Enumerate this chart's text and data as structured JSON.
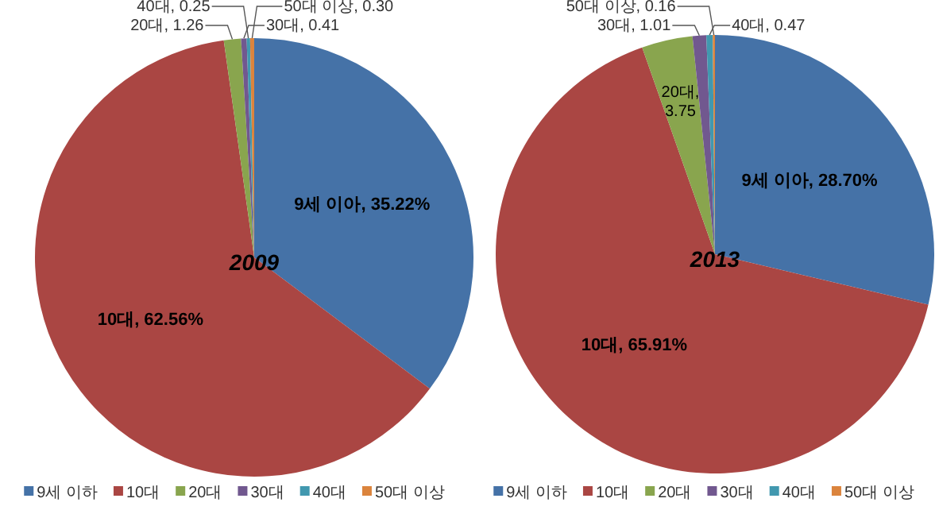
{
  "chart_data": [
    {
      "type": "pie",
      "title": "2009",
      "categories": [
        "9세 이하",
        "10대",
        "20대",
        "30대",
        "40대",
        "50대 이상"
      ],
      "values": [
        35.22,
        62.56,
        1.26,
        0.41,
        0.25,
        0.3
      ],
      "value_labels": [
        "9세 이아, 35.22%",
        "10대, 62.56%",
        "20대, 1.26",
        "30대, 0.41",
        "40대, 0.25",
        "50대 이상, 0.30"
      ],
      "colors": [
        "#4572a7",
        "#aa4643",
        "#89a54e",
        "#71588f",
        "#4198af",
        "#db843d"
      ],
      "legend": "bottom"
    },
    {
      "type": "pie",
      "title": "2013",
      "categories": [
        "9세 이하",
        "10대",
        "20대",
        "30대",
        "40대",
        "50대 이상"
      ],
      "values": [
        28.7,
        65.91,
        3.75,
        1.01,
        0.47,
        0.16
      ],
      "value_labels": [
        "9세 이아, 28.70%",
        "10대, 65.91%",
        "20대, 3.75",
        "30대, 1.01",
        "40대, 0.47",
        "50대 이상, 0.16"
      ],
      "colors": [
        "#4572a7",
        "#aa4643",
        "#89a54e",
        "#71588f",
        "#4198af",
        "#db843d"
      ],
      "legend": "bottom"
    }
  ]
}
